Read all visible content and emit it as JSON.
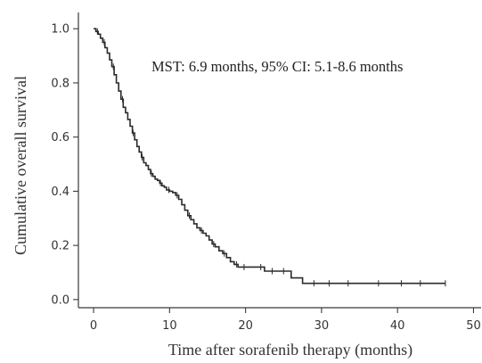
{
  "chart_data": {
    "type": "line",
    "title": "",
    "xlabel": "Time after sorafenib therapy (months)",
    "ylabel": "Cumulative overall survival",
    "xlim": [
      -2,
      51
    ],
    "ylim": [
      -0.03,
      1.06
    ],
    "xticks": [
      0,
      10,
      20,
      30,
      40,
      50
    ],
    "xtick_labels": [
      "0",
      "10",
      "20",
      "30",
      "40",
      "50"
    ],
    "yticks": [
      0.0,
      0.2,
      0.4,
      0.6,
      0.8,
      1.0
    ],
    "ytick_labels": [
      "0.0",
      "0.2",
      "0.4",
      "0.6",
      "0.8",
      "1.0"
    ],
    "grid": false,
    "legend": "none",
    "annotation": "MST: 6.9 months, 95% CI: 5.1-8.6 months",
    "series": [
      {
        "style": "step",
        "color": "#2b2b2b",
        "x": [
          0,
          0.3,
          0.6,
          0.9,
          1.2,
          1.5,
          1.8,
          2.1,
          2.4,
          2.7,
          3.0,
          3.3,
          3.6,
          3.9,
          4.2,
          4.5,
          4.8,
          5.1,
          5.4,
          5.7,
          6.0,
          6.3,
          6.6,
          6.9,
          7.2,
          7.5,
          7.8,
          8.1,
          8.4,
          8.7,
          9.0,
          9.3,
          9.6,
          10.0,
          10.4,
          10.8,
          11.2,
          11.6,
          12.0,
          12.4,
          12.8,
          13.2,
          13.6,
          14.0,
          14.4,
          14.8,
          15.2,
          15.6,
          16.0,
          16.5,
          17.0,
          17.5,
          18.0,
          18.5,
          19.0,
          19.5,
          21.0,
          22.5,
          26.0,
          27.5,
          46.3
        ],
        "y": [
          1.0,
          0.99,
          0.98,
          0.965,
          0.95,
          0.93,
          0.91,
          0.885,
          0.86,
          0.83,
          0.8,
          0.77,
          0.74,
          0.71,
          0.69,
          0.665,
          0.64,
          0.615,
          0.59,
          0.565,
          0.545,
          0.525,
          0.505,
          0.495,
          0.48,
          0.465,
          0.455,
          0.445,
          0.44,
          0.43,
          0.42,
          0.415,
          0.405,
          0.4,
          0.395,
          0.385,
          0.37,
          0.35,
          0.33,
          0.31,
          0.295,
          0.28,
          0.265,
          0.255,
          0.245,
          0.235,
          0.22,
          0.205,
          0.195,
          0.18,
          0.17,
          0.155,
          0.14,
          0.13,
          0.12,
          0.12,
          0.12,
          0.105,
          0.08,
          0.06,
          0.06
        ],
        "censored_x": [
          0.5,
          1.4,
          2.6,
          3.8,
          5.2,
          6.4,
          7.6,
          8.8,
          9.9,
          11.0,
          12.6,
          14.2,
          15.8,
          17.2,
          18.8,
          19.8,
          22.0,
          23.5,
          25.0,
          29.0,
          31.0,
          33.5,
          37.5,
          40.5,
          43.0,
          46.3
        ]
      }
    ]
  }
}
